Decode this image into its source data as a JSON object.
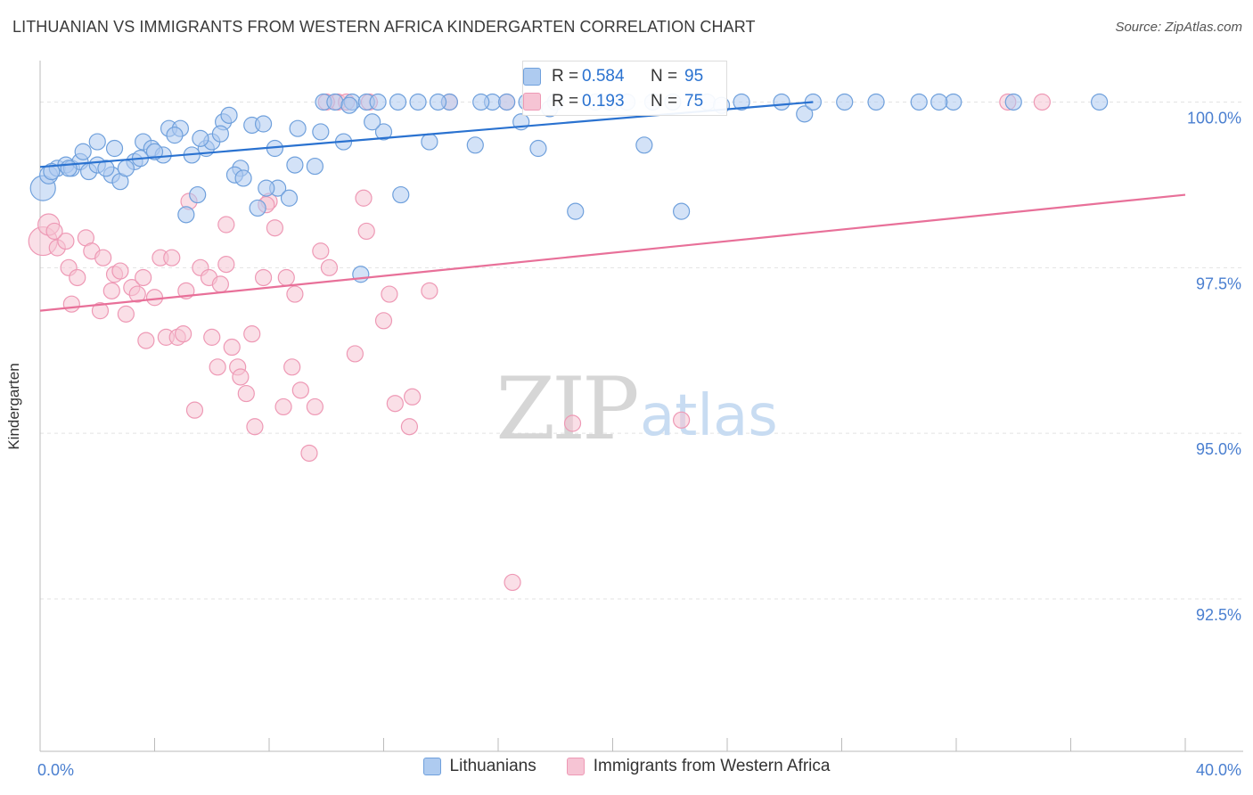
{
  "title": "LITHUANIAN VS IMMIGRANTS FROM WESTERN AFRICA KINDERGARTEN CORRELATION CHART",
  "source": "Source: ZipAtlas.com",
  "watermark": {
    "zip": "ZIP",
    "atlas": "atlas"
  },
  "legend": {
    "series1": "Lithuanians",
    "series2": "Immigrants from Western Africa"
  },
  "stats": {
    "series1": {
      "r_label": "R =",
      "r_value": "0.584",
      "n_label": "N =",
      "n_value": "95"
    },
    "series2": {
      "r_label": "R =",
      "r_value": "0.193",
      "n_label": "N =",
      "n_value": "75"
    }
  },
  "colors": {
    "blue_fill": "#aecbf0",
    "blue_stroke": "#6fa0dc",
    "blue_line": "#2a72d0",
    "pink_fill": "#f6c4d4",
    "pink_stroke": "#ee99b5",
    "pink_line": "#e87099",
    "tick_text": "#4a7fd0",
    "grid": "#e3e3e3"
  },
  "chart_data": {
    "type": "scatter",
    "title": "LITHUANIAN VS IMMIGRANTS FROM WESTERN AFRICA KINDERGARTEN CORRELATION CHART",
    "xlabel": "",
    "ylabel": "Kindergarten",
    "xlim": [
      0,
      40
    ],
    "ylim": [
      90.2,
      100.8
    ],
    "x_tick_labels": [
      {
        "x": 0,
        "label": "0.0%"
      },
      {
        "x": 40,
        "label": "40.0%"
      }
    ],
    "y_ticks": [
      {
        "y": 100,
        "label": "100.0%"
      },
      {
        "y": 97.5,
        "label": "97.5%"
      },
      {
        "y": 95,
        "label": "95.0%"
      },
      {
        "y": 92.5,
        "label": "92.5%"
      }
    ],
    "x_minor_ticks": [
      4,
      8,
      12,
      16,
      20,
      24,
      28,
      32,
      36,
      40
    ],
    "series": [
      {
        "name": "Lithuanians",
        "r": 0.584,
        "n": 95,
        "trend": {
          "x0": 0,
          "y0": 99.02,
          "x1": 27.0,
          "y1": 100.0
        },
        "points": [
          [
            0.1,
            98.7,
            14
          ],
          [
            0.3,
            98.9,
            10
          ],
          [
            0.6,
            99.0,
            9
          ],
          [
            0.9,
            99.05,
            9
          ],
          [
            1.1,
            99.0,
            9
          ],
          [
            1.4,
            99.1,
            9
          ],
          [
            1.7,
            98.95,
            9
          ],
          [
            2.0,
            99.05,
            9
          ],
          [
            2.5,
            98.9,
            9
          ],
          [
            2.8,
            98.8,
            9
          ],
          [
            1.5,
            99.25,
            9
          ],
          [
            2.6,
            99.3,
            9
          ],
          [
            3.3,
            99.1,
            9
          ],
          [
            3.6,
            99.4,
            9
          ],
          [
            3.9,
            99.3,
            9
          ],
          [
            4.3,
            99.2,
            9
          ],
          [
            4.5,
            99.6,
            9
          ],
          [
            5.3,
            99.2,
            9
          ],
          [
            4.9,
            99.6,
            9
          ],
          [
            5.8,
            99.3,
            9
          ],
          [
            6.0,
            99.4,
            9
          ],
          [
            6.4,
            99.7,
            9
          ],
          [
            6.6,
            99.8,
            9
          ],
          [
            7.0,
            99.0,
            9
          ],
          [
            7.4,
            99.65,
            9
          ],
          [
            7.8,
            99.67,
            9
          ],
          [
            8.3,
            98.7,
            9
          ],
          [
            9.0,
            99.6,
            9
          ],
          [
            9.6,
            99.03,
            9
          ],
          [
            9.9,
            100.0,
            9
          ],
          [
            10.3,
            100.0,
            9
          ],
          [
            10.6,
            99.4,
            9
          ],
          [
            10.9,
            100.0,
            9
          ],
          [
            11.4,
            100.0,
            9
          ],
          [
            11.8,
            100.0,
            9
          ],
          [
            12.0,
            99.55,
            9
          ],
          [
            12.5,
            100.0,
            9
          ],
          [
            13.2,
            100.0,
            9
          ],
          [
            13.6,
            99.4,
            9
          ],
          [
            14.3,
            100.0,
            9
          ],
          [
            15.2,
            99.35,
            9
          ],
          [
            15.8,
            100.0,
            9
          ],
          [
            16.3,
            100.0,
            9
          ],
          [
            17.0,
            100.0,
            9
          ],
          [
            17.4,
            99.3,
            9
          ],
          [
            18.0,
            100.0,
            9
          ],
          [
            19.4,
            100.0,
            9
          ],
          [
            20.5,
            100.0,
            9
          ],
          [
            21.4,
            100.0,
            9
          ],
          [
            22.1,
            100.0,
            9
          ],
          [
            23.3,
            100.0,
            9
          ],
          [
            24.5,
            100.0,
            9
          ],
          [
            25.9,
            100.0,
            9
          ],
          [
            26.7,
            99.82,
            9
          ],
          [
            28.1,
            100.0,
            9
          ],
          [
            30.7,
            100.0,
            9
          ],
          [
            31.9,
            100.0,
            9
          ],
          [
            34.0,
            100.0,
            9
          ],
          [
            37.0,
            100.0,
            9
          ],
          [
            21.1,
            99.35,
            9
          ],
          [
            22.4,
            98.35,
            9
          ],
          [
            18.7,
            98.35,
            9
          ],
          [
            3.5,
            99.15,
            9
          ],
          [
            4.7,
            99.5,
            9
          ],
          [
            5.6,
            99.45,
            9
          ],
          [
            6.8,
            98.9,
            9
          ],
          [
            7.1,
            98.85,
            9
          ],
          [
            7.6,
            98.4,
            9
          ],
          [
            7.9,
            98.7,
            9
          ],
          [
            8.7,
            98.55,
            9
          ],
          [
            5.1,
            98.3,
            9
          ],
          [
            5.5,
            98.6,
            9
          ],
          [
            12.6,
            98.6,
            9
          ],
          [
            11.2,
            97.4,
            9
          ],
          [
            11.6,
            99.7,
            9
          ],
          [
            9.8,
            99.55,
            9
          ],
          [
            8.2,
            99.3,
            9
          ],
          [
            6.3,
            99.52,
            9
          ],
          [
            2.3,
            99.0,
            9
          ],
          [
            1.0,
            99.0,
            9
          ],
          [
            0.4,
            98.95,
            9
          ],
          [
            13.9,
            100.0,
            9
          ],
          [
            17.8,
            99.9,
            9
          ],
          [
            16.8,
            99.7,
            9
          ],
          [
            10.8,
            99.95,
            9
          ],
          [
            15.4,
            100.0,
            9
          ],
          [
            19.9,
            100.0,
            9
          ],
          [
            23.8,
            99.95,
            9
          ],
          [
            27.0,
            100.0,
            9
          ],
          [
            29.2,
            100.0,
            9
          ],
          [
            31.4,
            100.0,
            9
          ],
          [
            3.0,
            99.0,
            9
          ],
          [
            4.0,
            99.25,
            9
          ],
          [
            8.9,
            99.05,
            9
          ],
          [
            2.0,
            99.4,
            9
          ]
        ]
      },
      {
        "name": "Immigrants from Western Africa",
        "r": 0.193,
        "n": 75,
        "trend": {
          "x0": 0,
          "y0": 96.85,
          "x1": 40.0,
          "y1": 98.6
        },
        "points": [
          [
            0.1,
            97.9,
            16
          ],
          [
            0.3,
            98.15,
            12
          ],
          [
            0.6,
            97.8,
            9
          ],
          [
            0.9,
            97.9,
            9
          ],
          [
            1.0,
            97.5,
            9
          ],
          [
            1.3,
            97.35,
            9
          ],
          [
            1.6,
            97.95,
            9
          ],
          [
            1.8,
            97.75,
            9
          ],
          [
            2.2,
            97.65,
            9
          ],
          [
            2.5,
            97.15,
            9
          ],
          [
            2.6,
            97.4,
            9
          ],
          [
            1.1,
            96.95,
            9
          ],
          [
            2.1,
            96.85,
            9
          ],
          [
            3.0,
            96.8,
            9
          ],
          [
            3.2,
            97.2,
            9
          ],
          [
            3.4,
            97.1,
            9
          ],
          [
            3.6,
            97.35,
            9
          ],
          [
            3.7,
            96.4,
            9
          ],
          [
            4.0,
            97.05,
            9
          ],
          [
            4.2,
            97.65,
            9
          ],
          [
            4.4,
            96.45,
            9
          ],
          [
            4.6,
            97.65,
            9
          ],
          [
            4.8,
            96.45,
            9
          ],
          [
            5.1,
            97.15,
            9
          ],
          [
            5.2,
            98.5,
            9
          ],
          [
            5.4,
            95.35,
            9
          ],
          [
            5.6,
            97.5,
            9
          ],
          [
            5.9,
            97.35,
            9
          ],
          [
            6.0,
            96.45,
            9
          ],
          [
            6.2,
            96.0,
            9
          ],
          [
            6.3,
            97.25,
            9
          ],
          [
            6.5,
            98.15,
            9
          ],
          [
            6.7,
            96.3,
            9
          ],
          [
            6.9,
            96.0,
            9
          ],
          [
            7.0,
            95.85,
            9
          ],
          [
            7.2,
            95.6,
            9
          ],
          [
            7.4,
            96.5,
            9
          ],
          [
            7.5,
            95.1,
            9
          ],
          [
            7.8,
            97.35,
            9
          ],
          [
            8.0,
            98.5,
            9
          ],
          [
            8.2,
            98.1,
            9
          ],
          [
            8.5,
            95.4,
            9
          ],
          [
            8.6,
            97.35,
            9
          ],
          [
            8.8,
            96.0,
            9
          ],
          [
            8.9,
            97.1,
            9
          ],
          [
            9.1,
            95.65,
            9
          ],
          [
            9.4,
            94.7,
            9
          ],
          [
            9.6,
            95.4,
            9
          ],
          [
            9.8,
            97.75,
            9
          ],
          [
            10.1,
            97.5,
            9
          ],
          [
            10.4,
            100.0,
            9
          ],
          [
            11.0,
            96.2,
            9
          ],
          [
            11.3,
            98.55,
            9
          ],
          [
            11.4,
            98.05,
            9
          ],
          [
            11.5,
            100.0,
            9
          ],
          [
            12.0,
            96.7,
            9
          ],
          [
            12.2,
            97.1,
            9
          ],
          [
            12.4,
            95.45,
            9
          ],
          [
            12.9,
            95.1,
            9
          ],
          [
            13.0,
            95.55,
            9
          ],
          [
            13.6,
            97.15,
            9
          ],
          [
            14.3,
            100.0,
            9
          ],
          [
            16.3,
            100.0,
            9
          ],
          [
            16.5,
            92.75,
            9
          ],
          [
            18.6,
            95.15,
            9
          ],
          [
            22.4,
            95.2,
            9
          ],
          [
            33.8,
            100.0,
            9
          ],
          [
            35.0,
            100.0,
            9
          ],
          [
            0.5,
            98.05,
            9
          ],
          [
            2.8,
            97.45,
            9
          ],
          [
            5.0,
            96.5,
            9
          ],
          [
            10.0,
            100.0,
            9
          ],
          [
            7.9,
            98.45,
            9
          ],
          [
            10.7,
            100.0,
            9
          ],
          [
            6.5,
            97.55,
            9
          ]
        ]
      }
    ]
  }
}
